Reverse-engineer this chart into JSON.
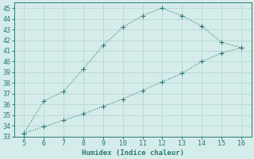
{
  "upper_x": [
    5,
    6,
    7,
    8,
    9,
    10,
    11,
    12,
    13,
    14,
    15,
    16
  ],
  "upper_y": [
    33.3,
    36.3,
    37.2,
    39.3,
    41.5,
    43.2,
    44.3,
    45.0,
    44.3,
    43.3,
    41.8,
    41.3
  ],
  "lower_x": [
    5,
    6,
    7,
    8,
    9,
    10,
    11,
    12,
    13,
    14,
    15,
    16
  ],
  "lower_y": [
    33.3,
    33.9,
    34.5,
    35.1,
    35.8,
    36.5,
    37.3,
    38.1,
    38.9,
    40.0,
    40.8,
    41.3
  ],
  "line_color": "#2d7a70",
  "bg_color": "#d4ecea",
  "grid_color": "#b8d8d5",
  "xlabel": "Humidex (Indice chaleur)",
  "xlim": [
    4.5,
    16.5
  ],
  "ylim": [
    33,
    45.5
  ],
  "xticks": [
    5,
    6,
    7,
    8,
    9,
    10,
    11,
    12,
    13,
    14,
    15,
    16
  ],
  "yticks": [
    33,
    34,
    35,
    36,
    37,
    38,
    39,
    40,
    41,
    42,
    43,
    44,
    45
  ]
}
